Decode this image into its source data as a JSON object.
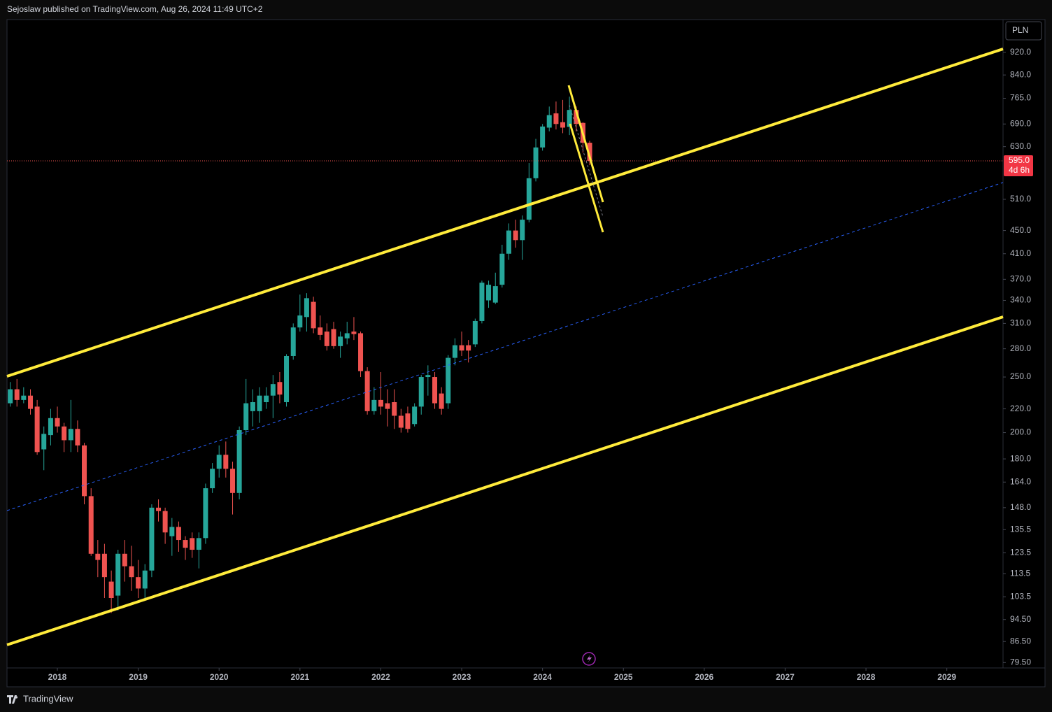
{
  "header": {
    "text": "Sejoslaw published on TradingView.com, Aug 26, 2024 11:49 UTC+2"
  },
  "currency": "PLN",
  "footer": {
    "brand": "TradingView"
  },
  "chart_data": {
    "type": "candlestick",
    "log_scale": true,
    "grid": false,
    "up_color": "#26a69a",
    "down_color": "#ef5350",
    "xlim": [
      2017.377,
      2029.695
    ],
    "xticks": [
      2018,
      2019,
      2020,
      2021,
      2022,
      2023,
      2024,
      2025,
      2026,
      2027,
      2028,
      2029
    ],
    "ylim": [
      77.8,
      1049
    ],
    "yticks": [
      {
        "value": 920,
        "label": "920.0"
      },
      {
        "value": 840,
        "label": "840.0"
      },
      {
        "value": 765,
        "label": "765.0"
      },
      {
        "value": 690,
        "label": "690.0"
      },
      {
        "value": 630,
        "label": "630.0"
      },
      {
        "value": 510,
        "label": "510.0"
      },
      {
        "value": 450,
        "label": "450.0"
      },
      {
        "value": 410,
        "label": "410.0"
      },
      {
        "value": 370,
        "label": "370.0"
      },
      {
        "value": 340,
        "label": "340.0"
      },
      {
        "value": 310,
        "label": "310.0"
      },
      {
        "value": 280,
        "label": "280.0"
      },
      {
        "value": 250,
        "label": "250.0"
      },
      {
        "value": 220,
        "label": "220.0"
      },
      {
        "value": 200,
        "label": "200.0"
      },
      {
        "value": 180,
        "label": "180.0"
      },
      {
        "value": 164,
        "label": "164.0"
      },
      {
        "value": 148,
        "label": "148.0"
      },
      {
        "value": 135.5,
        "label": "135.5"
      },
      {
        "value": 123.5,
        "label": "123.5"
      },
      {
        "value": 113.5,
        "label": "113.5"
      },
      {
        "value": 103.5,
        "label": "103.5"
      },
      {
        "value": 94.5,
        "label": "94.50"
      },
      {
        "value": 86.5,
        "label": "86.50"
      },
      {
        "value": 79.5,
        "label": "79.50"
      }
    ],
    "last_price": {
      "value": 595,
      "label": "595.0"
    },
    "countdown": "4d 6h",
    "x": [
      2017.417,
      2017.5,
      2017.583,
      2017.667,
      2017.75,
      2017.833,
      2017.917,
      2018.0,
      2018.083,
      2018.167,
      2018.25,
      2018.333,
      2018.417,
      2018.5,
      2018.583,
      2018.667,
      2018.75,
      2018.833,
      2018.917,
      2019.0,
      2019.083,
      2019.167,
      2019.25,
      2019.333,
      2019.417,
      2019.5,
      2019.583,
      2019.667,
      2019.75,
      2019.833,
      2019.917,
      2020.0,
      2020.083,
      2020.167,
      2020.25,
      2020.333,
      2020.417,
      2020.5,
      2020.583,
      2020.667,
      2020.75,
      2020.833,
      2020.917,
      2021.0,
      2021.083,
      2021.167,
      2021.25,
      2021.333,
      2021.417,
      2021.5,
      2021.583,
      2021.667,
      2021.75,
      2021.833,
      2021.917,
      2022.0,
      2022.083,
      2022.167,
      2022.25,
      2022.333,
      2022.417,
      2022.5,
      2022.583,
      2022.667,
      2022.75,
      2022.833,
      2022.917,
      2023.0,
      2023.083,
      2023.167,
      2023.25,
      2023.333,
      2023.417,
      2023.5,
      2023.583,
      2023.667,
      2023.75,
      2023.833,
      2023.917,
      2024.0,
      2024.083,
      2024.167,
      2024.25,
      2024.333,
      2024.417,
      2024.5,
      2024.583
    ],
    "open": [
      225,
      238,
      228,
      232,
      222,
      187,
      198,
      212,
      205,
      194,
      203,
      190,
      155,
      123,
      123,
      110,
      104,
      123,
      117,
      112,
      107,
      115,
      148,
      146,
      132,
      137,
      130,
      131,
      125,
      131,
      160,
      173,
      183,
      173,
      157,
      202,
      218,
      218,
      226,
      232,
      245,
      226,
      272,
      305,
      318,
      338,
      305,
      300,
      303,
      283,
      292,
      300,
      298,
      256,
      218,
      228,
      225,
      226,
      214,
      216,
      207,
      222,
      250,
      250,
      234,
      225,
      270,
      284,
      284,
      285,
      313,
      340,
      337,
      362,
      410,
      450,
      433,
      470,
      555,
      628,
      680,
      720,
      695,
      682,
      730,
      693,
      640
    ],
    "high": [
      245,
      248,
      240,
      238,
      228,
      205,
      220,
      222,
      208,
      228,
      210,
      192,
      160,
      130,
      128,
      115,
      125,
      130,
      127,
      120,
      118,
      150,
      153,
      148,
      142,
      140,
      132,
      134,
      134,
      163,
      177,
      190,
      193,
      178,
      205,
      248,
      238,
      240,
      240,
      252,
      255,
      274,
      310,
      348,
      350,
      345,
      320,
      310,
      312,
      300,
      312,
      318,
      300,
      260,
      240,
      255,
      238,
      238,
      220,
      222,
      225,
      252,
      262,
      255,
      240,
      273,
      292,
      300,
      290,
      316,
      368,
      368,
      380,
      425,
      463,
      470,
      478,
      590,
      650,
      690,
      740,
      755,
      760,
      770,
      740,
      695,
      645
    ],
    "low": [
      222,
      222,
      225,
      215,
      183,
      172,
      190,
      200,
      185,
      185,
      185,
      150,
      122,
      112,
      103,
      97,
      98,
      110,
      106,
      103,
      102,
      112,
      140,
      128,
      122,
      124,
      120,
      121,
      116,
      128,
      157,
      167,
      167,
      144,
      153,
      198,
      205,
      208,
      220,
      212,
      225,
      222,
      268,
      300,
      300,
      298,
      290,
      278,
      280,
      270,
      285,
      290,
      250,
      215,
      215,
      215,
      205,
      203,
      200,
      200,
      205,
      215,
      232,
      220,
      215,
      220,
      262,
      272,
      265,
      282,
      310,
      330,
      335,
      358,
      400,
      420,
      400,
      465,
      548,
      620,
      670,
      675,
      665,
      660,
      670,
      615,
      585
    ],
    "close": [
      238,
      228,
      232,
      220,
      185,
      199,
      212,
      205,
      194,
      203,
      190,
      155,
      123,
      120,
      112,
      103,
      123,
      117,
      112,
      107,
      115,
      148,
      146,
      134,
      137,
      130,
      126,
      125,
      131,
      160,
      173,
      183,
      173,
      157,
      202,
      225,
      226,
      232,
      232,
      243,
      233,
      272,
      305,
      320,
      343,
      304,
      296,
      283,
      283,
      294,
      298,
      297,
      256,
      218,
      228,
      222,
      220,
      214,
      204,
      203,
      222,
      250,
      252,
      225,
      220,
      270,
      284,
      278,
      278,
      313,
      365,
      362,
      360,
      410,
      450,
      433,
      470,
      555,
      628,
      683,
      715,
      690,
      680,
      730,
      690,
      640,
      595
    ]
  }
}
